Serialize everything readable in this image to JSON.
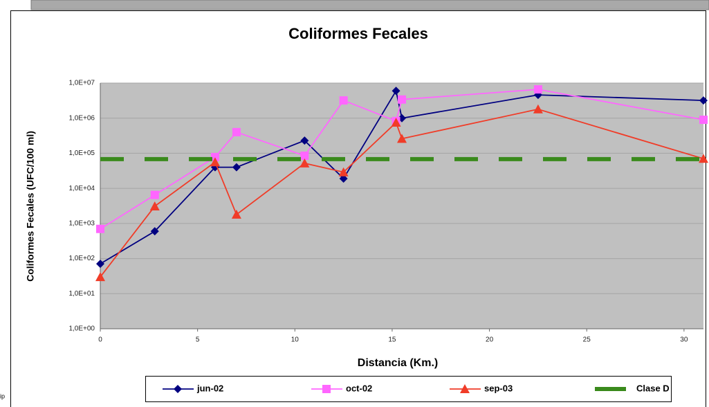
{
  "chart_data": {
    "type": "line",
    "title": "Coliformes Fecales",
    "x_label": "Distancia (Km.)",
    "y_label": "Coliformes Fecales (UFC/100 ml)",
    "side_note": "ip",
    "yscale": "log",
    "xlim": [
      0,
      31
    ],
    "xticks": [
      0,
      5,
      10,
      15,
      20,
      25,
      30
    ],
    "ylim": [
      1,
      10000000
    ],
    "yticks": [
      {
        "value": 1,
        "label": "1,0E+00"
      },
      {
        "value": 10,
        "label": "1,0E+01"
      },
      {
        "value": 100,
        "label": "1,0E+02"
      },
      {
        "value": 1000,
        "label": "1,0E+03"
      },
      {
        "value": 10000,
        "label": "1,0E+04"
      },
      {
        "value": 100000,
        "label": "1,0E+05"
      },
      {
        "value": 1000000,
        "label": "1,0E+06"
      },
      {
        "value": 10000000,
        "label": "1,0E+07"
      }
    ],
    "grid": true,
    "legend": "bottom",
    "series": [
      {
        "name": "jun-02",
        "color": "#000080",
        "marker": "diamond",
        "x": [
          0,
          2.8,
          5.9,
          7,
          10.5,
          12.5,
          15.2,
          15.5,
          22.5,
          31
        ],
        "values": [
          71,
          600,
          40000,
          40000,
          230000,
          19000,
          6000000,
          1000000,
          4600000,
          3200000
        ]
      },
      {
        "name": "oct-02",
        "color": "#ff66ff",
        "marker": "square",
        "x": [
          0,
          2.8,
          5.9,
          7,
          10.5,
          12.5,
          15.2,
          15.5,
          22.5,
          31
        ],
        "values": [
          700,
          6500,
          78000,
          400000,
          85000,
          3200000,
          830000,
          3400000,
          6600000,
          900000
        ]
      },
      {
        "name": "sep-03",
        "color": "#f03c28",
        "marker": "triangle",
        "x": [
          0,
          2.8,
          5.9,
          7,
          10.5,
          12.5,
          15.2,
          15.5,
          22.5,
          31
        ],
        "values": [
          30,
          3100,
          56000,
          1800,
          52000,
          29000,
          750000,
          260000,
          1800000,
          70000
        ]
      },
      {
        "name": "Clase D",
        "color": "#3a8a1c",
        "marker": "none",
        "dash": true,
        "x": [
          0,
          31
        ],
        "values": [
          68000,
          68000
        ]
      }
    ]
  }
}
